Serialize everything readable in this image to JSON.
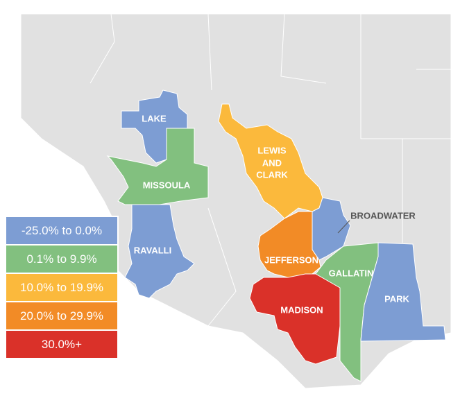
{
  "legend": [
    {
      "label": "-25.0% to 0.0%",
      "color": "#7d9dd3"
    },
    {
      "label": "0.1% to 9.9%",
      "color": "#82c07f"
    },
    {
      "label": "10.0% to 19.9%",
      "color": "#fbb93c"
    },
    {
      "label": "20.0% to 29.9%",
      "color": "#f28b26"
    },
    {
      "label": "30.0%+",
      "color": "#da3129"
    }
  ],
  "regions": [
    {
      "name": "LAKE",
      "color": "#7d9dd3"
    },
    {
      "name": "MISSOULA",
      "color": "#82c07f"
    },
    {
      "name": "RAVALLI",
      "color": "#7d9dd3"
    },
    {
      "lines": [
        "LEWIS",
        "AND",
        "CLARK"
      ],
      "color": "#fbb93c"
    },
    {
      "name": "BROADWATER",
      "color": "#7d9dd3"
    },
    {
      "name": "JEFFERSON",
      "color": "#f28b26"
    },
    {
      "name": "GALLATIN",
      "color": "#82c07f"
    },
    {
      "name": "MADISON",
      "color": "#da3129"
    },
    {
      "name": "PARK",
      "color": "#7d9dd3"
    }
  ]
}
